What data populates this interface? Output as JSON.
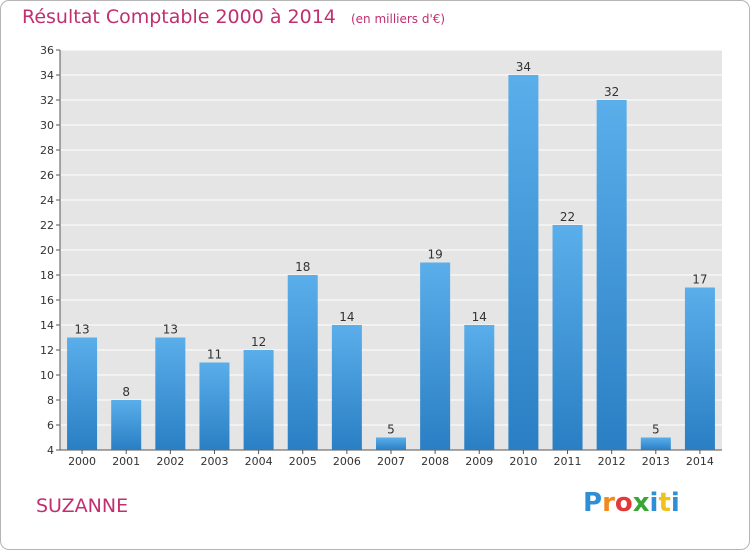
{
  "header": {
    "title": "Résultat Comptable 2000 à 2014",
    "subtitle": "(en milliers d'€)"
  },
  "commune": "SUZANNE",
  "logo": {
    "text": "Proxiti",
    "letters": [
      {
        "char": "P",
        "color": "#2f8fd6"
      },
      {
        "char": "r",
        "color": "#f08a1c"
      },
      {
        "char": "o",
        "color": "#e23a3a"
      },
      {
        "char": "x",
        "color": "#3aa636"
      },
      {
        "char": "i",
        "color": "#2f8fd6"
      },
      {
        "char": "t",
        "color": "#f0c21c"
      },
      {
        "char": "i",
        "color": "#2f8fd6"
      }
    ]
  },
  "colors": {
    "bar_light": "#5aaeea",
    "bar_dark": "#2a7fc4",
    "grid": "#ffffff",
    "plot_bg": "#e5e5e5",
    "title": "#c03070"
  },
  "chart_data": {
    "type": "bar",
    "title": "Résultat Comptable 2000 à 2014",
    "subtitle": "(en milliers d'€)",
    "xlabel": "",
    "ylabel": "",
    "categories": [
      "2000",
      "2001",
      "2002",
      "2003",
      "2004",
      "2005",
      "2006",
      "2007",
      "2008",
      "2009",
      "2010",
      "2011",
      "2012",
      "2013",
      "2014"
    ],
    "values": [
      13,
      8,
      13,
      11,
      12,
      18,
      14,
      5,
      19,
      14,
      34,
      22,
      32,
      5,
      17
    ],
    "ylim": [
      4,
      36
    ],
    "yticks": [
      4,
      6,
      8,
      10,
      12,
      14,
      16,
      18,
      20,
      22,
      24,
      26,
      28,
      30,
      32,
      34,
      36
    ],
    "grid": true
  }
}
